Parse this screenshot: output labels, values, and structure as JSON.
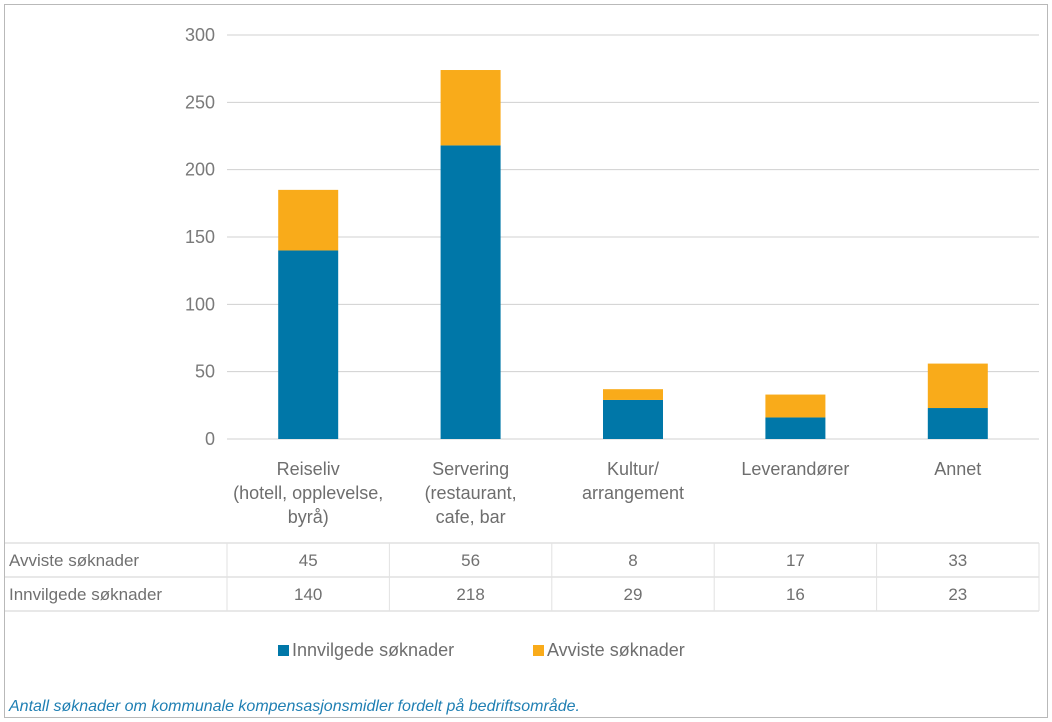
{
  "chart_data": {
    "type": "bar",
    "stacked": true,
    "categories": [
      [
        "Reiseliv",
        "(hotell, opplevelse,",
        "byrå)"
      ],
      [
        "Servering",
        "(restaurant,",
        "cafe, bar"
      ],
      [
        "Kultur/",
        "arrangement"
      ],
      [
        "Leverandører"
      ],
      [
        "Annet"
      ]
    ],
    "series": [
      {
        "name": "Innvilgede søknader",
        "values": [
          140,
          218,
          29,
          16,
          23
        ],
        "color": "#0077a8"
      },
      {
        "name": "Avviste søknader",
        "values": [
          45,
          56,
          8,
          17,
          33
        ],
        "color": "#f9ab1a"
      }
    ],
    "ylim": [
      0,
      300
    ],
    "yticks": [
      0,
      50,
      100,
      150,
      200,
      250,
      300
    ],
    "grid": true,
    "data_table": {
      "rows": [
        {
          "label": "Avviste søknader",
          "values": [
            45,
            56,
            8,
            17,
            33
          ]
        },
        {
          "label": "Innvilgede søknader",
          "values": [
            140,
            218,
            29,
            16,
            23
          ]
        }
      ]
    },
    "legend_position": "bottom"
  },
  "caption": "Antall søknader om kommunale kompensasjonsmidler fordelt på bedriftsområde."
}
